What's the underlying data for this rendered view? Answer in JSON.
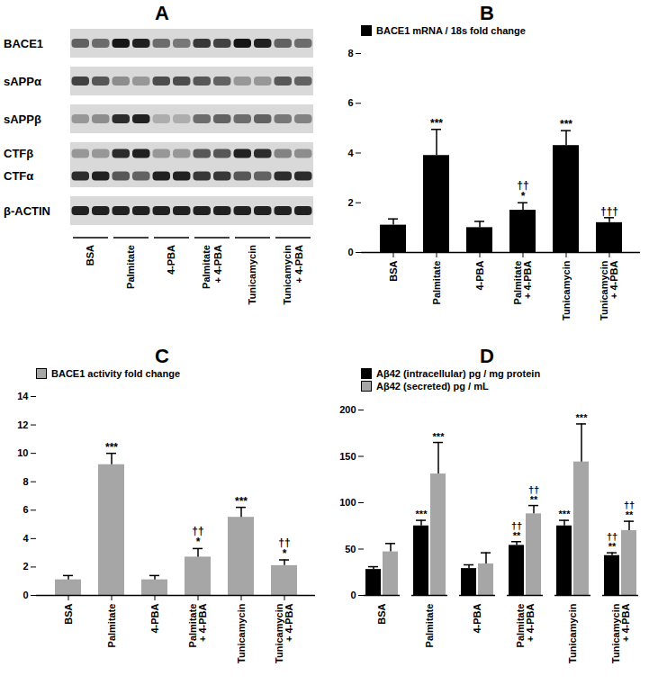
{
  "blot": {
    "panel": "A",
    "groups": [
      "BSA",
      "Palmitate",
      "4-PBA",
      "Palmitate\n+ 4-PBA",
      "Tunicamycin",
      "Tunicamycin\n+ 4-PBA"
    ],
    "rows": [
      {
        "labels": [
          "BACE1"
        ],
        "bands": [
          [
            0.55,
            0.5,
            0.9,
            0.85,
            0.5,
            0.45,
            0.75,
            0.7,
            0.9,
            0.85,
            0.55,
            0.5
          ]
        ]
      },
      {
        "labels": [
          "sAPPα"
        ],
        "bands": [
          [
            0.7,
            0.6,
            0.35,
            0.3,
            0.65,
            0.65,
            0.6,
            0.55,
            0.3,
            0.3,
            0.6,
            0.55
          ]
        ]
      },
      {
        "labels": [
          "sAPPβ"
        ],
        "bands": [
          [
            0.3,
            0.35,
            0.8,
            0.85,
            0.2,
            0.2,
            0.5,
            0.55,
            0.5,
            0.55,
            0.45,
            0.4
          ]
        ]
      },
      {
        "labels": [
          "CTFβ",
          "CTFα"
        ],
        "bands": [
          [
            0.3,
            0.3,
            0.8,
            0.85,
            0.3,
            0.3,
            0.6,
            0.6,
            0.85,
            0.8,
            0.4,
            0.35
          ],
          [
            0.8,
            0.85,
            0.6,
            0.55,
            0.85,
            0.85,
            0.75,
            0.75,
            0.6,
            0.55,
            0.8,
            0.8
          ]
        ]
      },
      {
        "labels": [
          "β-ACTIN"
        ],
        "bands": [
          [
            0.85,
            0.85,
            0.85,
            0.85,
            0.85,
            0.85,
            0.85,
            0.85,
            0.85,
            0.85,
            0.85,
            0.85
          ]
        ]
      }
    ]
  },
  "chart_data": [
    {
      "panel": "B",
      "type": "bar",
      "legend": "top-left",
      "categories": [
        "BSA",
        "Palmitate",
        "4-PBA",
        "Palmitate\n+ 4-PBA",
        "Tunicamycin",
        "Tunicamycin\n+ 4-PBA"
      ],
      "ylim": [
        0,
        8
      ],
      "yticks": [
        0,
        2,
        4,
        6,
        8
      ],
      "series": [
        {
          "name": "BACE1 mRNA / 18s fold change",
          "color": "#000000",
          "values": [
            1.1,
            3.9,
            1.0,
            1.7,
            4.3,
            1.2
          ],
          "errors": [
            0.25,
            1.05,
            0.25,
            0.3,
            0.6,
            0.2
          ],
          "annotations": [
            null,
            "***",
            null,
            "††\n*",
            "***",
            "†††"
          ]
        }
      ]
    },
    {
      "panel": "C",
      "type": "bar",
      "legend": "top-left",
      "categories": [
        "BSA",
        "Palmitate",
        "4-PBA",
        "Palmitate\n+ 4-PBA",
        "Tunicamycin",
        "Tunicamycin\n+ 4-PBA"
      ],
      "ylim": [
        0,
        14
      ],
      "yticks": [
        0,
        2,
        4,
        6,
        8,
        10,
        12,
        14
      ],
      "series": [
        {
          "name": "BACE1 activity fold change",
          "color": "#a6a6a6",
          "values": [
            1.1,
            9.2,
            1.1,
            2.7,
            5.5,
            2.1
          ],
          "errors": [
            0.3,
            0.8,
            0.3,
            0.6,
            0.7,
            0.4
          ],
          "annotations": [
            null,
            "***",
            null,
            "††\n*",
            "***",
            "††\n*"
          ]
        }
      ]
    },
    {
      "panel": "D",
      "type": "bar",
      "legend": "top-left",
      "categories": [
        "BSA",
        "Palmitate",
        "4-PBA",
        "Palmitate\n+ 4-PBA",
        "Tunicamycin",
        "Tunicamycin\n+ 4-PBA"
      ],
      "ylim": [
        0,
        200
      ],
      "yticks": [
        0,
        50,
        100,
        150,
        200
      ],
      "series": [
        {
          "name": "Aβ42 (intracellular) pg / mg protein",
          "color": "#000000",
          "values": [
            28,
            75,
            29,
            54,
            75,
            43
          ],
          "errors": [
            3,
            6,
            4,
            4,
            6,
            3
          ],
          "annotations": [
            null,
            "***",
            null,
            "††\n**",
            "***",
            "††\n**"
          ]
        },
        {
          "name": "Aβ42 (secreted) pg / mL",
          "color": "#a6a6a6",
          "values": [
            47,
            131,
            34,
            88,
            144,
            70
          ],
          "errors": [
            9,
            34,
            12,
            9,
            41,
            10
          ],
          "annotations": [
            null,
            "***",
            null,
            "††\n**",
            "***",
            "††\n**"
          ]
        }
      ]
    }
  ]
}
